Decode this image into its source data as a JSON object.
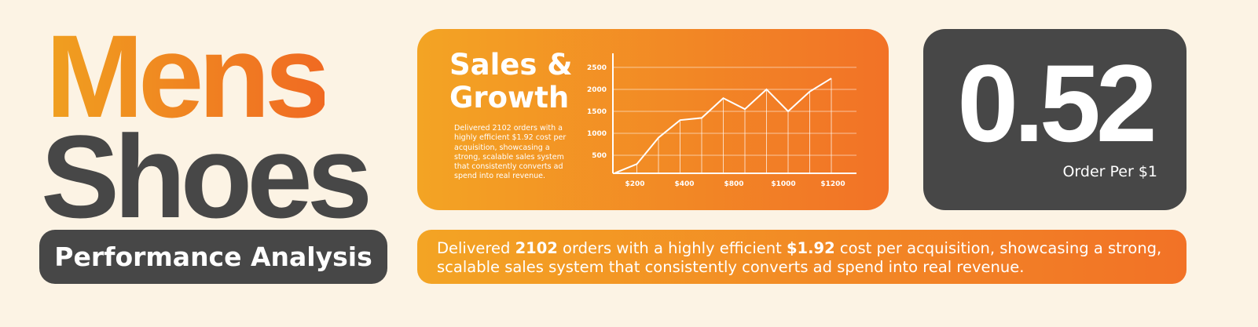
{
  "title": {
    "line1": "Mens",
    "line2": "Shoes"
  },
  "subtitle": "Performance Analysis",
  "sales_card": {
    "title_lines": [
      "Sales &",
      "Growth"
    ],
    "description": "Delivered 2102 orders with a highly efficient $1.92 cost per acquisition, showcasing a strong, scalable sales system that consistently converts ad spend into real revenue.",
    "chart": {
      "type": "line",
      "values": [
        100,
        300,
        900,
        1300,
        1350,
        1800,
        1550,
        2000,
        1500,
        1950,
        2250
      ],
      "x_labels": [
        "$200",
        "$400",
        "$800",
        "$1000",
        "$1200"
      ],
      "ylim": [
        90,
        2820
      ],
      "yticks": [
        500,
        1000,
        1500,
        2000,
        2500
      ],
      "color": "#ffffff"
    }
  },
  "metric": {
    "value": "0.52",
    "label": "Order Per $1"
  },
  "banner": {
    "parts": [
      "Delivered ",
      "2102",
      " orders with a highly efficient ",
      "$1.92",
      " cost per acquisition, showcasing a strong, scalable sales system that consistently converts ad spend into real revenue."
    ]
  }
}
